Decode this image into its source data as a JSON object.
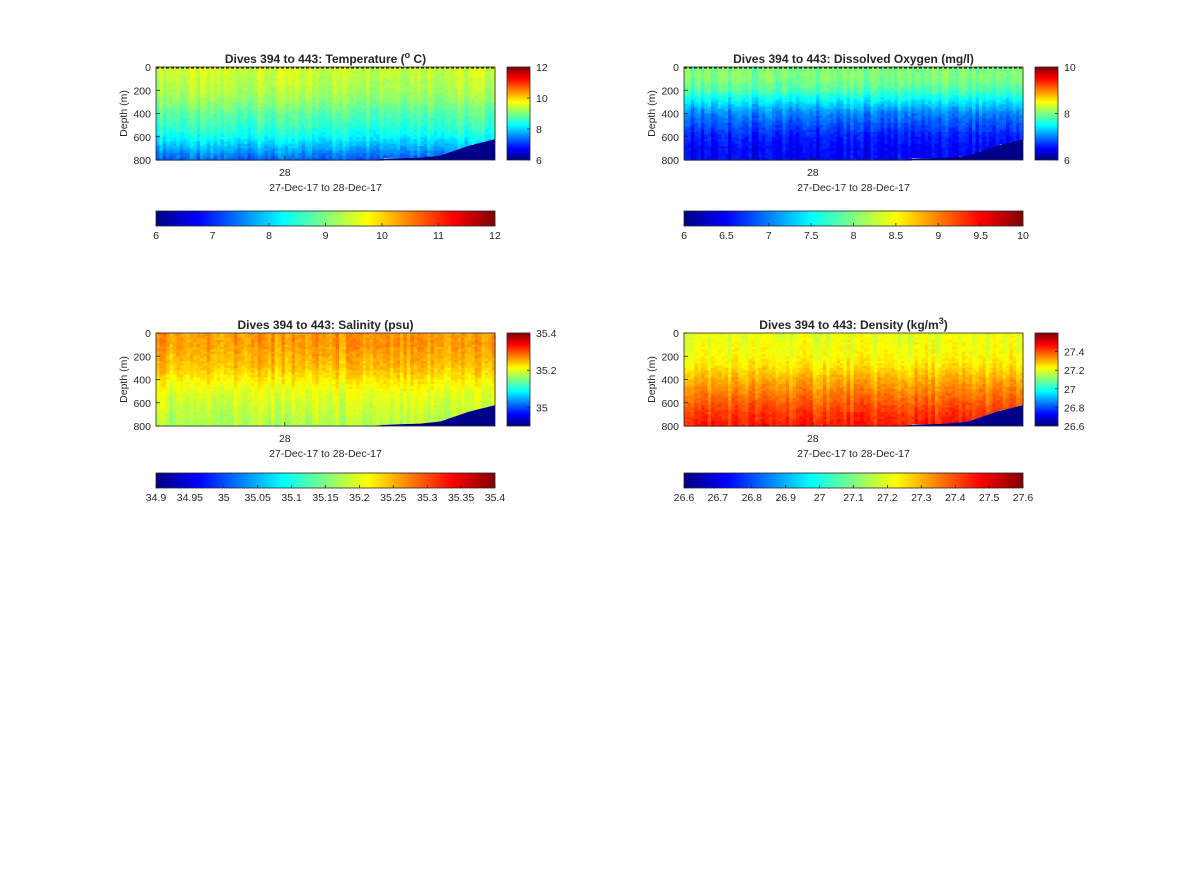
{
  "colors": {
    "colormap": [
      "#00007f",
      "#0000ff",
      "#007fff",
      "#00ffff",
      "#7fff7f",
      "#ffff00",
      "#ff7f00",
      "#ff0000",
      "#7f0000"
    ],
    "seafloor": "#00008b",
    "axis": "#262626"
  },
  "chart_data": [
    {
      "type": "heatmap",
      "id": "temperature",
      "title_main": "Dives 394 to 443: Temperature (",
      "title_sup": "o",
      "title_end": " C)",
      "ylabel": "Depth (m)",
      "xlabel": "27-Dec-17 to 28-Dec-17",
      "x_tick_labels": [
        "28"
      ],
      "y_range": [
        0,
        800
      ],
      "y_ticks": [
        0,
        200,
        400,
        600,
        800
      ],
      "y_reversed": true,
      "surface_line": "dashed",
      "n_columns": 100,
      "seafloor_depth_profile": [
        {
          "x": 0.0,
          "depth": 800
        },
        {
          "x": 0.64,
          "depth": 800
        },
        {
          "x": 0.67,
          "depth": 790
        },
        {
          "x": 0.72,
          "depth": 785
        },
        {
          "x": 0.78,
          "depth": 780
        },
        {
          "x": 0.84,
          "depth": 760
        },
        {
          "x": 0.88,
          "depth": 720
        },
        {
          "x": 0.92,
          "depth": 680
        },
        {
          "x": 0.96,
          "depth": 650
        },
        {
          "x": 1.0,
          "depth": 620
        }
      ],
      "profile_values": [
        {
          "depth": 0,
          "value": 9.5
        },
        {
          "depth": 100,
          "value": 9.4
        },
        {
          "depth": 200,
          "value": 9.3
        },
        {
          "depth": 300,
          "value": 9.1
        },
        {
          "depth": 400,
          "value": 8.8
        },
        {
          "depth": 500,
          "value": 8.6
        },
        {
          "depth": 600,
          "value": 8.3
        },
        {
          "depth": 700,
          "value": 7.8
        },
        {
          "depth": 800,
          "value": 7.3
        }
      ],
      "side_colorbar": {
        "range": [
          6,
          12
        ],
        "ticks": [
          "6",
          "8",
          "10",
          "12"
        ]
      },
      "bottom_colorbar": {
        "range": [
          6,
          12
        ],
        "ticks": [
          "6",
          "7",
          "8",
          "9",
          "10",
          "11",
          "12"
        ]
      }
    },
    {
      "type": "heatmap",
      "id": "oxygen",
      "title_main": "Dives 394 to 443: Dissolved Oxygen (mg/l)",
      "ylabel": "Depth (m)",
      "xlabel": "27-Dec-17 to 28-Dec-17",
      "x_tick_labels": [
        "28"
      ],
      "y_range": [
        0,
        800
      ],
      "y_ticks": [
        0,
        200,
        400,
        600,
        800
      ],
      "y_reversed": true,
      "surface_line": "dashed",
      "n_columns": 100,
      "seafloor_depth_profile": [
        {
          "x": 0.0,
          "depth": 800
        },
        {
          "x": 0.64,
          "depth": 800
        },
        {
          "x": 0.67,
          "depth": 790
        },
        {
          "x": 0.72,
          "depth": 785
        },
        {
          "x": 0.78,
          "depth": 780
        },
        {
          "x": 0.84,
          "depth": 760
        },
        {
          "x": 0.88,
          "depth": 720
        },
        {
          "x": 0.92,
          "depth": 680
        },
        {
          "x": 0.96,
          "depth": 650
        },
        {
          "x": 1.0,
          "depth": 620
        }
      ],
      "profile_values": [
        {
          "depth": 0,
          "value": 8.0
        },
        {
          "depth": 100,
          "value": 8.0
        },
        {
          "depth": 200,
          "value": 7.8
        },
        {
          "depth": 300,
          "value": 7.4
        },
        {
          "depth": 400,
          "value": 7.0
        },
        {
          "depth": 500,
          "value": 6.8
        },
        {
          "depth": 600,
          "value": 6.6
        },
        {
          "depth": 700,
          "value": 6.5
        },
        {
          "depth": 800,
          "value": 6.5
        }
      ],
      "side_colorbar": {
        "range": [
          6,
          10
        ],
        "ticks": [
          "6",
          "8",
          "10"
        ]
      },
      "bottom_colorbar": {
        "range": [
          6,
          10
        ],
        "ticks": [
          "6",
          "6.5",
          "7",
          "7.5",
          "8",
          "8.5",
          "9",
          "9.5",
          "10"
        ]
      }
    },
    {
      "type": "heatmap",
      "id": "salinity",
      "title_main": "Dives 394 to 443: Salinity (psu)",
      "ylabel": "Depth (m)",
      "xlabel": "27-Dec-17 to 28-Dec-17",
      "x_tick_labels": [
        "28"
      ],
      "y_range": [
        0,
        800
      ],
      "y_ticks": [
        0,
        200,
        400,
        600,
        800
      ],
      "y_reversed": true,
      "surface_line": "none",
      "n_columns": 100,
      "seafloor_depth_profile": [
        {
          "x": 0.0,
          "depth": 800
        },
        {
          "x": 0.64,
          "depth": 800
        },
        {
          "x": 0.67,
          "depth": 790
        },
        {
          "x": 0.72,
          "depth": 785
        },
        {
          "x": 0.78,
          "depth": 780
        },
        {
          "x": 0.84,
          "depth": 760
        },
        {
          "x": 0.88,
          "depth": 720
        },
        {
          "x": 0.92,
          "depth": 680
        },
        {
          "x": 0.96,
          "depth": 650
        },
        {
          "x": 1.0,
          "depth": 620
        }
      ],
      "profile_values": [
        {
          "depth": 0,
          "value": 35.26
        },
        {
          "depth": 100,
          "value": 35.26
        },
        {
          "depth": 200,
          "value": 35.25
        },
        {
          "depth": 300,
          "value": 35.24
        },
        {
          "depth": 400,
          "value": 35.22
        },
        {
          "depth": 500,
          "value": 35.2
        },
        {
          "depth": 600,
          "value": 35.19
        },
        {
          "depth": 700,
          "value": 35.18
        },
        {
          "depth": 800,
          "value": 35.17
        }
      ],
      "side_colorbar": {
        "range": [
          34.9,
          35.4
        ],
        "ticks": [
          "35",
          "35.2",
          "35.4"
        ]
      },
      "bottom_colorbar": {
        "range": [
          34.9,
          35.4
        ],
        "ticks": [
          "34.9",
          "34.95",
          "35",
          "35.05",
          "35.1",
          "35.15",
          "35.2",
          "35.25",
          "35.3",
          "35.35",
          "35.4"
        ]
      }
    },
    {
      "type": "heatmap",
      "id": "density",
      "title_main": "Dives 394 to 443: Density (kg/m",
      "title_sup": "3",
      "title_end": ")",
      "ylabel": "Depth (m)",
      "xlabel": "27-Dec-17 to 28-Dec-17",
      "x_tick_labels": [
        "28"
      ],
      "y_range": [
        0,
        800
      ],
      "y_ticks": [
        0,
        200,
        400,
        600,
        800
      ],
      "y_reversed": true,
      "surface_line": "none",
      "n_columns": 100,
      "seafloor_depth_profile": [
        {
          "x": 0.0,
          "depth": 800
        },
        {
          "x": 0.64,
          "depth": 800
        },
        {
          "x": 0.67,
          "depth": 790
        },
        {
          "x": 0.72,
          "depth": 785
        },
        {
          "x": 0.78,
          "depth": 780
        },
        {
          "x": 0.84,
          "depth": 760
        },
        {
          "x": 0.88,
          "depth": 720
        },
        {
          "x": 0.92,
          "depth": 680
        },
        {
          "x": 0.96,
          "depth": 650
        },
        {
          "x": 1.0,
          "depth": 620
        }
      ],
      "profile_values": [
        {
          "depth": 0,
          "value": 27.2
        },
        {
          "depth": 100,
          "value": 27.21
        },
        {
          "depth": 200,
          "value": 27.22
        },
        {
          "depth": 300,
          "value": 27.25
        },
        {
          "depth": 400,
          "value": 27.3
        },
        {
          "depth": 500,
          "value": 27.34
        },
        {
          "depth": 600,
          "value": 27.38
        },
        {
          "depth": 700,
          "value": 27.42
        },
        {
          "depth": 800,
          "value": 27.45
        }
      ],
      "side_colorbar": {
        "range": [
          26.6,
          27.6
        ],
        "ticks": [
          "26.6",
          "26.8",
          "27",
          "27.2",
          "27.4"
        ]
      },
      "bottom_colorbar": {
        "range": [
          26.6,
          27.6
        ],
        "ticks": [
          "26.6",
          "26.7",
          "26.8",
          "26.9",
          "27",
          "27.1",
          "27.2",
          "27.3",
          "27.4",
          "27.5",
          "27.6"
        ]
      }
    }
  ]
}
